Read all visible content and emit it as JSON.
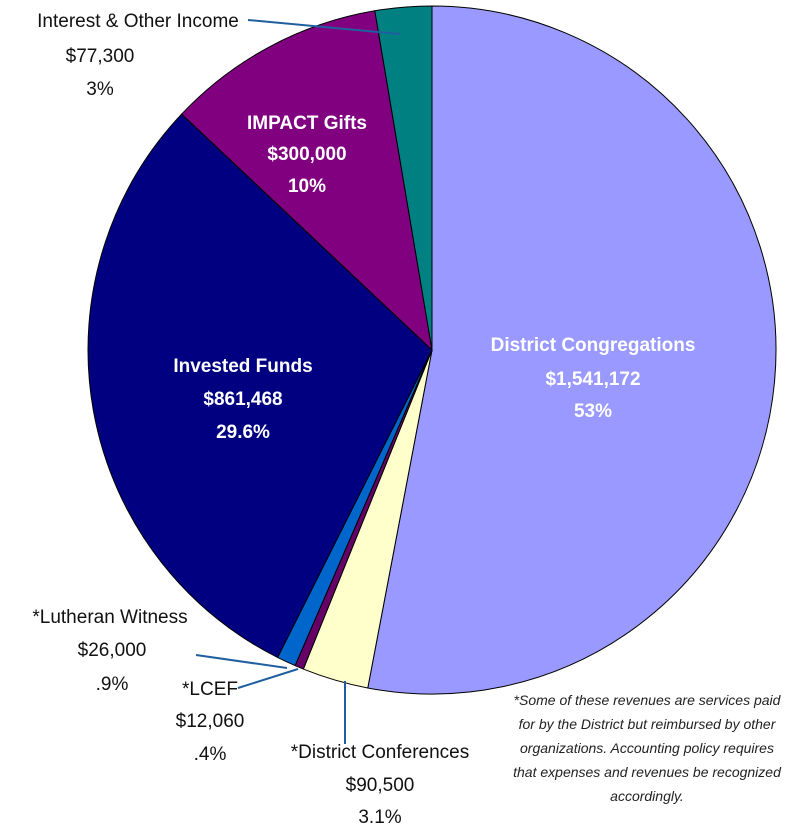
{
  "chart_data": {
    "type": "pie",
    "categories": [
      "District Congregations",
      "*District Conferences",
      "*LCEF",
      "*Lutheran Witness",
      "Invested Funds",
      "IMPACT Gifts",
      "Interest & Other Income"
    ],
    "values": [
      1541172,
      90500,
      12060,
      26000,
      861468,
      300000,
      77300
    ],
    "value_labels": [
      "$1,541,172",
      "$90,500",
      "$12,060",
      "$26,000",
      "$861,468",
      "$300,000",
      "$77,300"
    ],
    "percent_labels": [
      "53%",
      "3.1%",
      ".4%",
      ".9%",
      "29.6%",
      "10%",
      "3%"
    ],
    "colors": [
      "#9999ff",
      "#ffffcc",
      "#660066",
      "#0066cc",
      "#000080",
      "#800080",
      "#008080"
    ],
    "note": "*Some of these revenues are services paid for by the District but reimbursed by other organizations. Accounting policy requires that expenses and revenues be recognized accordingly."
  }
}
